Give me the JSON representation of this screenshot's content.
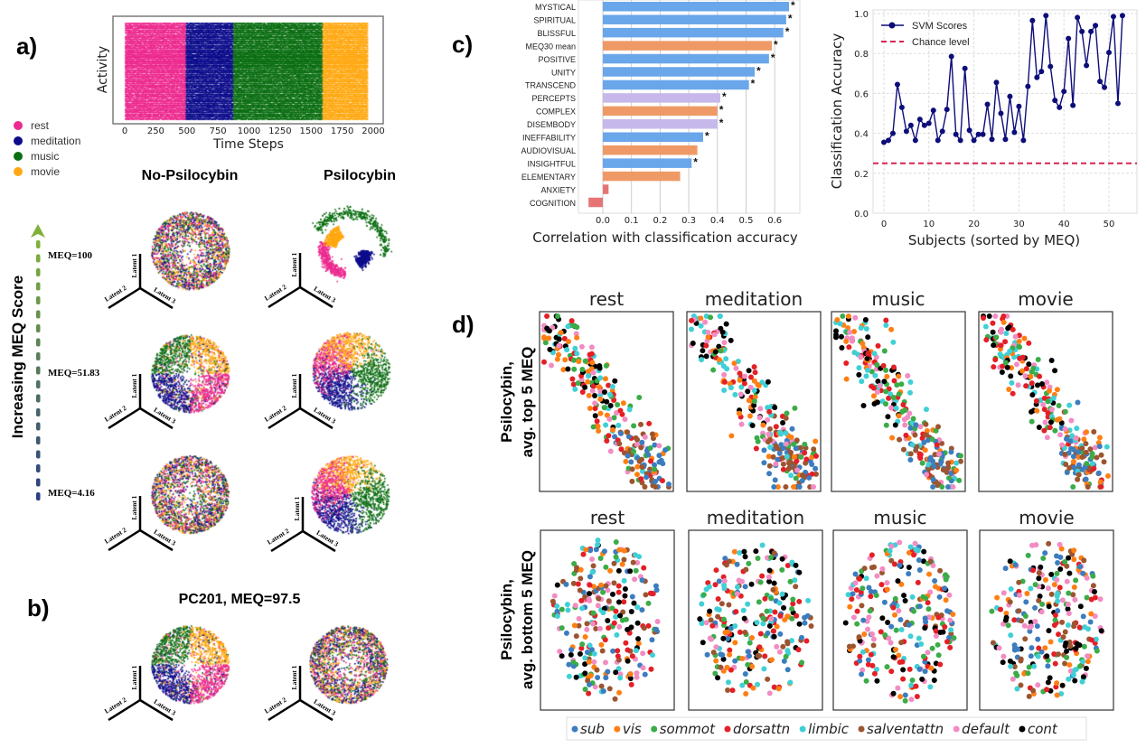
{
  "panel_labels": {
    "a": "a)",
    "b": "b)",
    "c": "c)",
    "d": "d)"
  },
  "panel_a": {
    "raster": {
      "ylabel": "Activity",
      "xlabel": "Time Steps",
      "xticks": [
        "0",
        "250",
        "500",
        "750",
        "1000",
        "1250",
        "1500",
        "1750",
        "2000"
      ],
      "xlim": [
        0,
        2000
      ],
      "segments": [
        {
          "state": "rest",
          "start": 0,
          "end": 490
        },
        {
          "state": "meditation",
          "start": 490,
          "end": 870
        },
        {
          "state": "music",
          "start": 870,
          "end": 1590
        },
        {
          "state": "movie",
          "start": 1590,
          "end": 1950
        }
      ]
    },
    "legend": [
      {
        "label": "rest",
        "color": "#ec2a8f"
      },
      {
        "label": "meditation",
        "color": "#0d0d8c"
      },
      {
        "label": "music",
        "color": "#0b6e12"
      },
      {
        "label": "movie",
        "color": "#ffa812"
      }
    ],
    "col_titles": [
      "No-Psilocybin",
      "Psilocybin"
    ],
    "arrow_label": "Increasing MEQ Score",
    "rows": [
      {
        "meq": "MEQ=100"
      },
      {
        "meq": "MEQ=51.83"
      },
      {
        "meq": "MEQ=4.16"
      }
    ],
    "axes": [
      "Latent 1",
      "Latent 2",
      "Latent 3"
    ]
  },
  "panel_b": {
    "title": "PC201, MEQ=97.5"
  },
  "chart_data": [
    {
      "type": "bar",
      "orientation": "horizontal",
      "categories": [
        "MYSTICAL",
        "SPIRITUAL",
        "BLISSFUL",
        "MEQ30 mean",
        "POSITIVE",
        "UNITY",
        "TRANSCEND",
        "PERCEPTS",
        "COMPLEX",
        "DISEMBODY",
        "INEFFABILITY",
        "AUDIOVISUAL",
        "INSIGHTFUL",
        "ELEMENTARY",
        "ANXIETY",
        "COGNITION"
      ],
      "values": [
        0.65,
        0.64,
        0.63,
        0.59,
        0.58,
        0.53,
        0.51,
        0.41,
        0.4,
        0.4,
        0.35,
        0.33,
        0.31,
        0.27,
        0.02,
        -0.05
      ],
      "significant": [
        true,
        true,
        true,
        true,
        true,
        true,
        true,
        true,
        true,
        true,
        true,
        false,
        true,
        false,
        false,
        false
      ],
      "colors": [
        "#6aa6ea",
        "#6aa6ea",
        "#6aa6ea",
        "#ef9a66",
        "#6aa6ea",
        "#6aa6ea",
        "#6aa6ea",
        "#c6b8ea",
        "#ef9a66",
        "#c6b8ea",
        "#6aa6ea",
        "#ef9a66",
        "#6aa6ea",
        "#ef9a66",
        "#e57575",
        "#e57575"
      ],
      "sig_marker": "*",
      "xlabel": "Correlation with classification accuracy",
      "xticks": [
        "0.0",
        "0.1",
        "0.2",
        "0.3",
        "0.4",
        "0.5",
        "0.6"
      ],
      "xlim": [
        -0.085,
        0.69
      ],
      "grid": "vertical"
    },
    {
      "type": "line",
      "x": [
        0,
        1,
        2,
        3,
        4,
        5,
        6,
        7,
        8,
        9,
        10,
        11,
        12,
        13,
        14,
        15,
        16,
        17,
        18,
        19,
        20,
        21,
        22,
        23,
        24,
        25,
        26,
        27,
        28,
        29,
        30,
        31,
        32,
        33,
        34,
        35,
        36,
        37,
        38,
        39,
        40,
        41,
        42,
        43,
        44,
        45,
        46,
        47,
        48,
        49,
        50,
        51,
        52,
        53
      ],
      "series": [
        {
          "name": "SVM Scores",
          "color": "#0d0d7a",
          "values": [
            0.355,
            0.365,
            0.4,
            0.645,
            0.53,
            0.41,
            0.44,
            0.365,
            0.47,
            0.44,
            0.45,
            0.515,
            0.365,
            0.41,
            0.52,
            0.785,
            0.395,
            0.365,
            0.725,
            0.415,
            0.365,
            0.395,
            0.395,
            0.545,
            0.37,
            0.655,
            0.5,
            0.37,
            0.585,
            0.405,
            0.535,
            0.365,
            0.635,
            0.965,
            0.68,
            0.71,
            0.99,
            0.735,
            0.565,
            0.53,
            0.61,
            0.875,
            0.54,
            0.98,
            0.91,
            0.74,
            0.91,
            0.94,
            0.66,
            0.63,
            0.805,
            0.985,
            0.55,
            0.99
          ]
        }
      ],
      "reference_line": {
        "name": "Chance level",
        "y": 0.25,
        "color": "#d62450",
        "style": "dashed"
      },
      "xlabel": "Subjects (sorted by MEQ)",
      "ylabel": "Classification  Accuracy",
      "xticks": [
        "0",
        "10",
        "20",
        "30",
        "40",
        "50"
      ],
      "yticks": [
        "0.0",
        "0.2",
        "0.4",
        "0.6",
        "0.8",
        "1.0"
      ],
      "xlim": [
        -2.5,
        56
      ],
      "ylim": [
        0,
        1.01
      ],
      "grid": true,
      "legend_position": "top-left"
    },
    {
      "type": "scatter",
      "row_labels": [
        [
          "Psilocybin,",
          "avg. top 5 MEQ"
        ],
        [
          "Psilocybin,",
          "avg. bottom 5 MEQ"
        ]
      ],
      "col_titles": [
        "rest",
        "meditation",
        "music",
        "movie"
      ],
      "legend": [
        {
          "label": "sub",
          "color": "#3b7dbf"
        },
        {
          "label": "vis",
          "color": "#ff7f13"
        },
        {
          "label": "sommot",
          "color": "#3aac48"
        },
        {
          "label": "dorsattn",
          "color": "#e41f26"
        },
        {
          "label": "limbic",
          "color": "#3fd0d6"
        },
        {
          "label": "salventattn",
          "color": "#9c5530"
        },
        {
          "label": "default",
          "color": "#f28cc3"
        },
        {
          "label": "cont",
          "color": "#000000"
        }
      ],
      "legend_position": "bottom"
    }
  ]
}
